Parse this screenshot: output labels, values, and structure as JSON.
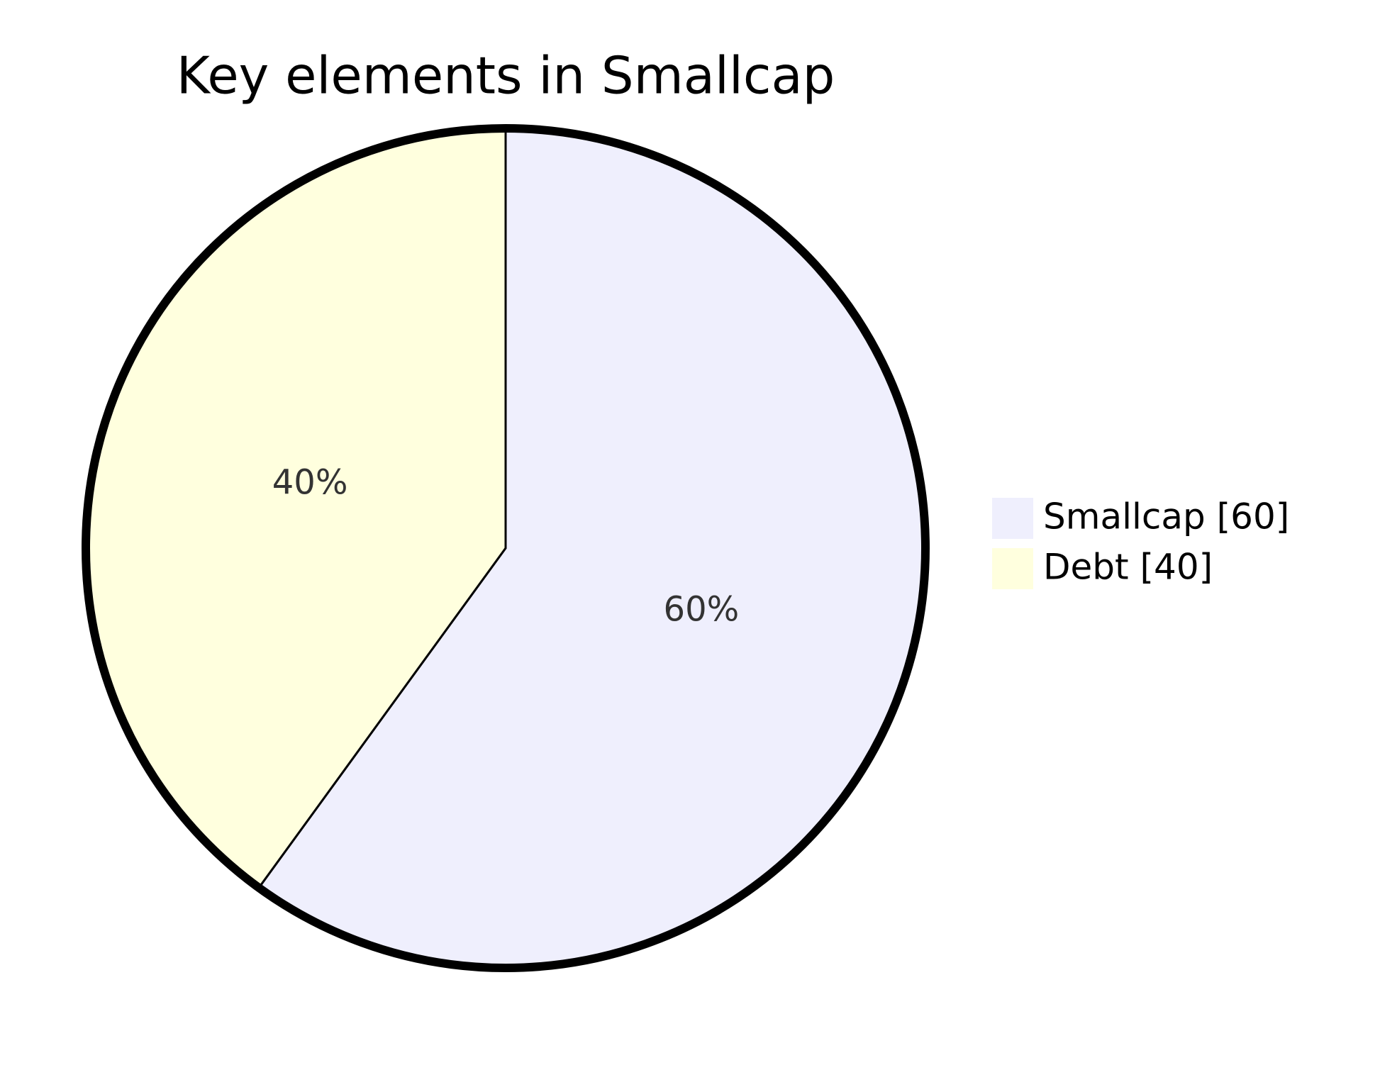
{
  "chart_data": {
    "type": "pie",
    "title": "Key elements in Smallcap",
    "categories": [
      "Smallcap [60]",
      "Debt [40]"
    ],
    "values": [
      60,
      40
    ],
    "value_labels": [
      "60%",
      "40%"
    ],
    "colors": [
      "#efeffd",
      "#ffffde"
    ],
    "legend": "right"
  }
}
